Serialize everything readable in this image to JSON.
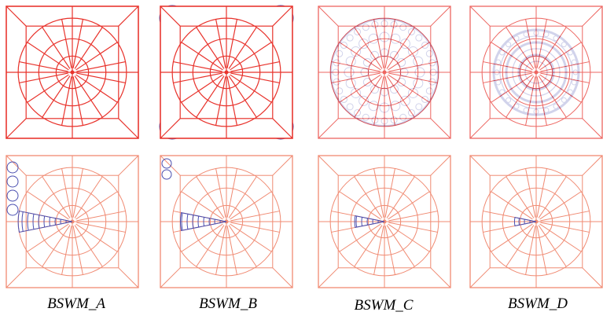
{
  "captions": [
    "BSWM_A",
    "BSWM_B",
    "BSWM_C",
    "BSWM_D"
  ]
}
